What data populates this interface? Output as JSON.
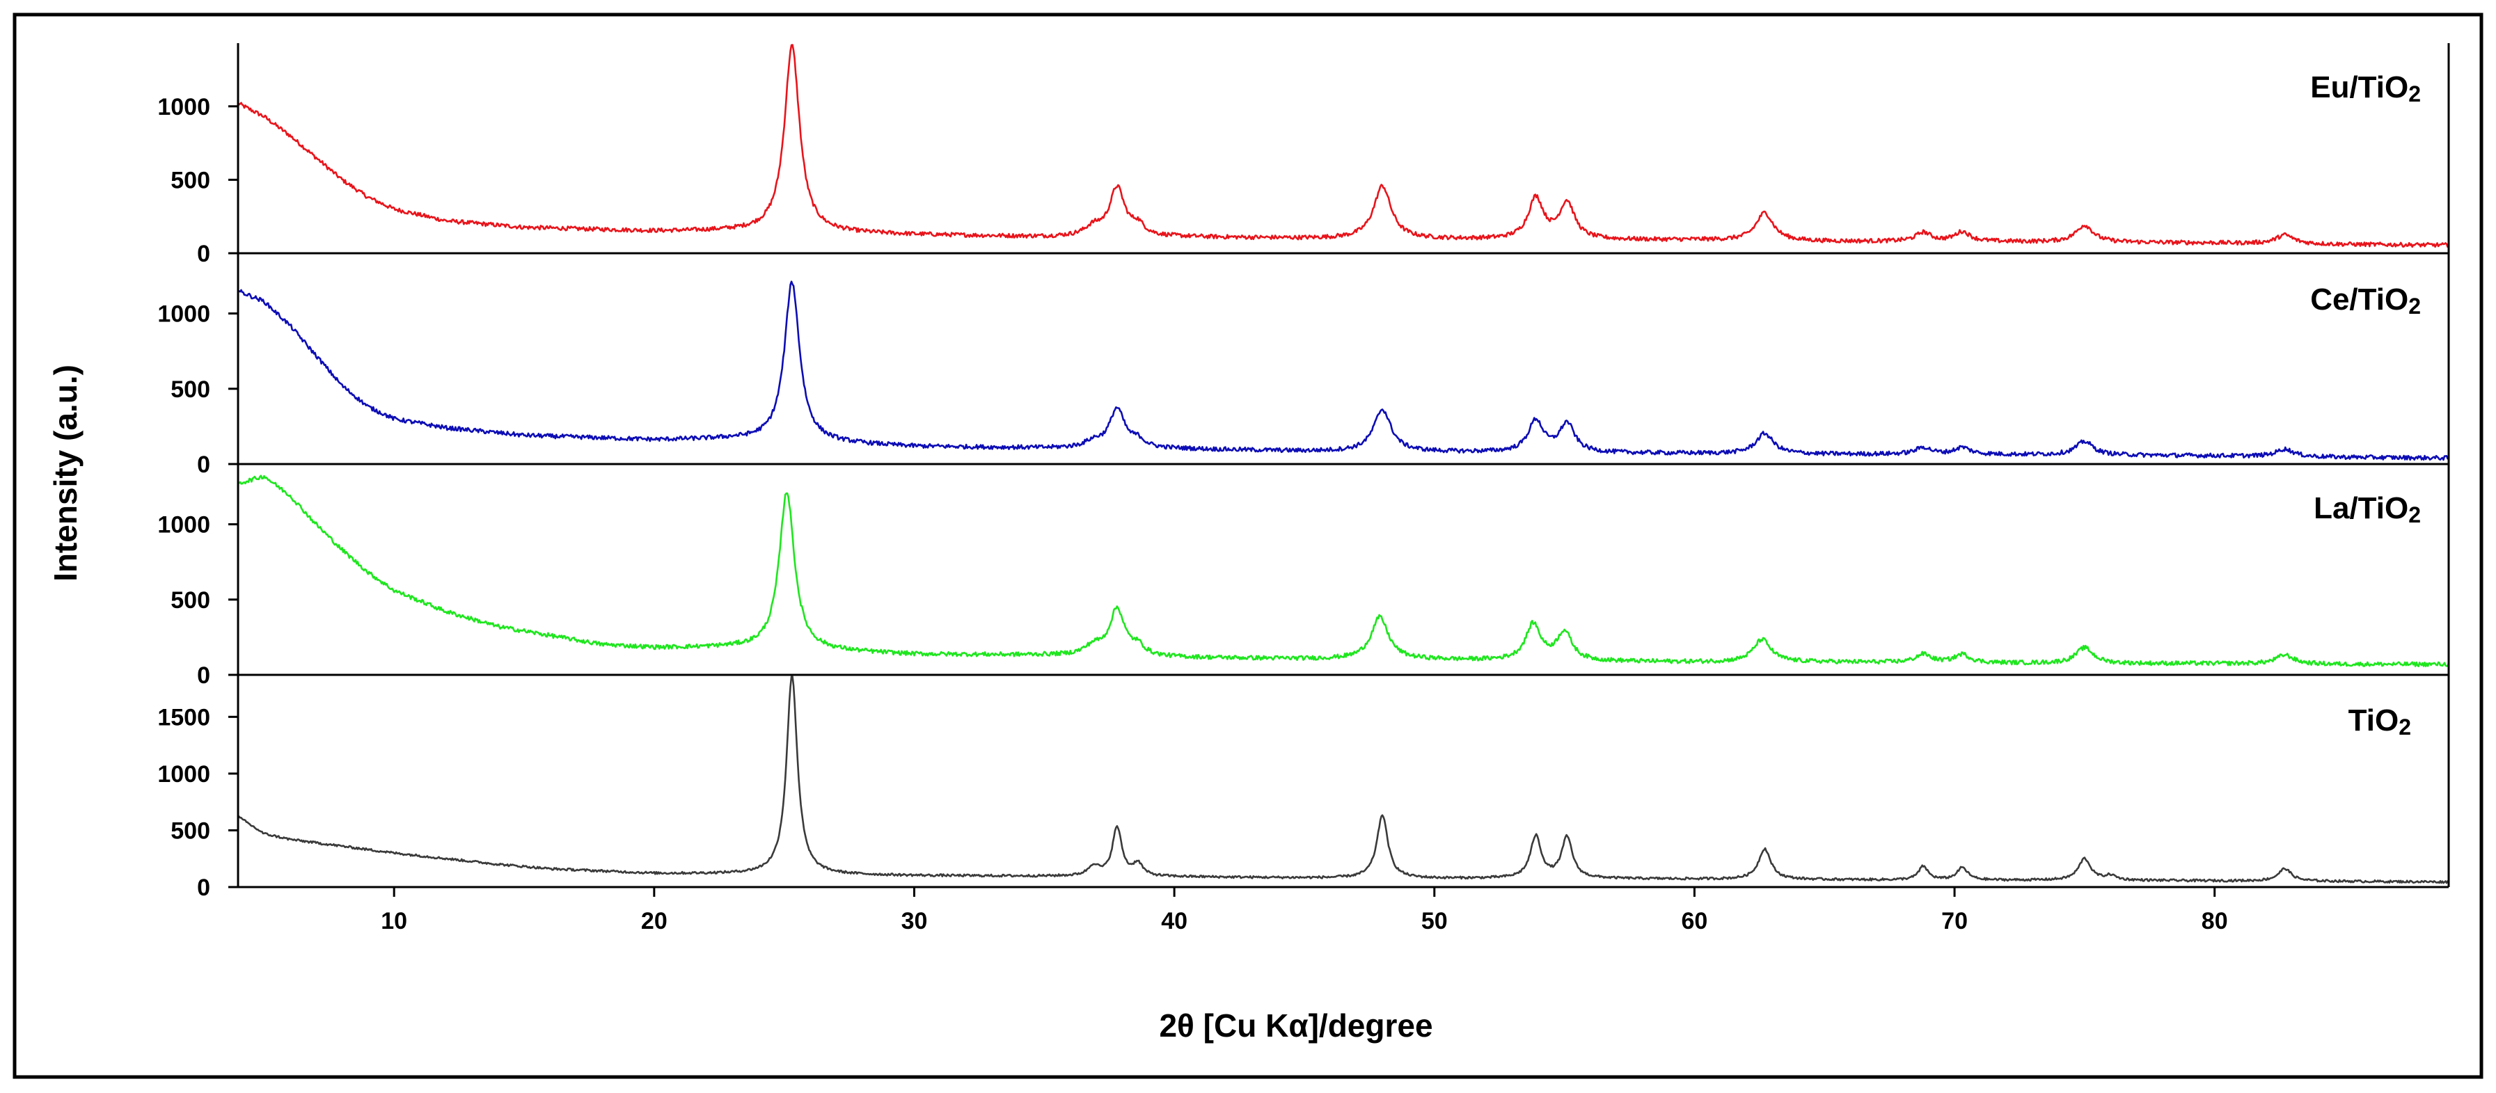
{
  "chart_data": {
    "type": "line",
    "title": "",
    "xlabel": "2θ [Cu Kα]/degree",
    "ylabel": "Intensity (a.u.)",
    "xlim": [
      4,
      89
    ],
    "x_ticks": [
      10,
      20,
      30,
      40,
      50,
      60,
      70,
      80
    ],
    "x_tick_labels": [
      "10",
      "20",
      "30",
      "40",
      "50",
      "60",
      "70",
      "80"
    ],
    "grid": false,
    "layout": "stacked panels sharing x axis",
    "series": [
      {
        "name": "Eu/TiO2",
        "label_main": "Eu/TiO",
        "label_sub": "2",
        "color": "#e8141b",
        "ylim": [
          0,
          1430
        ],
        "y_ticks": [
          0,
          500,
          1000
        ],
        "y_tick_labels": [
          "0",
          "500",
          "1000"
        ],
        "baseline": [
          [
            4,
            1020
          ],
          [
            5,
            930
          ],
          [
            6,
            800
          ],
          [
            7,
            650
          ],
          [
            8,
            500
          ],
          [
            9,
            380
          ],
          [
            10,
            300
          ],
          [
            12,
            220
          ],
          [
            15,
            175
          ],
          [
            20,
            150
          ],
          [
            23,
            150
          ],
          [
            30,
            125
          ],
          [
            35,
            110
          ],
          [
            40,
            110
          ],
          [
            45,
            100
          ],
          [
            50,
            95
          ],
          [
            55,
            90
          ],
          [
            60,
            90
          ],
          [
            65,
            80
          ],
          [
            70,
            80
          ],
          [
            75,
            75
          ],
          [
            80,
            70
          ],
          [
            85,
            60
          ],
          [
            89,
            55
          ]
        ],
        "peaks": [
          [
            25.3,
            1270,
            0.35
          ],
          [
            36.9,
            60,
            0.4
          ],
          [
            37.8,
            330,
            0.35
          ],
          [
            38.6,
            70,
            0.3
          ],
          [
            48.0,
            360,
            0.4
          ],
          [
            53.9,
            280,
            0.35
          ],
          [
            55.1,
            250,
            0.35
          ],
          [
            62.7,
            190,
            0.4
          ],
          [
            68.8,
            60,
            0.35
          ],
          [
            70.3,
            65,
            0.35
          ],
          [
            75.0,
            115,
            0.4
          ],
          [
            82.7,
            60,
            0.4
          ]
        ],
        "noise": 14
      },
      {
        "name": "Ce/TiO2",
        "label_main": "Ce/TiO",
        "label_sub": "2",
        "color": "#0d0db5",
        "ylim": [
          0,
          1400
        ],
        "y_ticks": [
          0,
          500,
          1000
        ],
        "y_tick_labels": [
          "0",
          "500",
          "1000"
        ],
        "baseline": [
          [
            4,
            1150
          ],
          [
            5,
            1080
          ],
          [
            6,
            920
          ],
          [
            7,
            720
          ],
          [
            8,
            520
          ],
          [
            9,
            380
          ],
          [
            10,
            300
          ],
          [
            12,
            240
          ],
          [
            15,
            190
          ],
          [
            20,
            160
          ],
          [
            23,
            165
          ],
          [
            30,
            115
          ],
          [
            35,
            105
          ],
          [
            40,
            100
          ],
          [
            45,
            85
          ],
          [
            50,
            80
          ],
          [
            55,
            75
          ],
          [
            60,
            70
          ],
          [
            65,
            65
          ],
          [
            70,
            65
          ],
          [
            75,
            60
          ],
          [
            80,
            55
          ],
          [
            85,
            45
          ],
          [
            89,
            40
          ]
        ],
        "peaks": [
          [
            25.3,
            1060,
            0.35
          ],
          [
            36.9,
            40,
            0.4
          ],
          [
            37.8,
            260,
            0.35
          ],
          [
            38.6,
            50,
            0.3
          ],
          [
            48.0,
            280,
            0.4
          ],
          [
            53.9,
            210,
            0.35
          ],
          [
            55.1,
            190,
            0.35
          ],
          [
            62.7,
            135,
            0.4
          ],
          [
            68.8,
            45,
            0.35
          ],
          [
            70.3,
            45,
            0.35
          ],
          [
            75.0,
            90,
            0.4
          ],
          [
            82.7,
            50,
            0.4
          ]
        ],
        "noise": 14
      },
      {
        "name": "La/TiO2",
        "label_main": "La/TiO",
        "label_sub": "2",
        "color": "#1ee61e",
        "ylim": [
          0,
          1400
        ],
        "y_ticks": [
          0,
          500,
          1000
        ],
        "y_tick_labels": [
          "0",
          "500",
          "1000"
        ],
        "baseline": [
          [
            4,
            1270
          ],
          [
            5,
            1320
          ],
          [
            6,
            1190
          ],
          [
            7,
            1000
          ],
          [
            8,
            830
          ],
          [
            9,
            680
          ],
          [
            10,
            560
          ],
          [
            12,
            420
          ],
          [
            14,
            320
          ],
          [
            16,
            260
          ],
          [
            18,
            200
          ],
          [
            20,
            180
          ],
          [
            23,
            180
          ],
          [
            30,
            135
          ],
          [
            35,
            130
          ],
          [
            40,
            115
          ],
          [
            45,
            105
          ],
          [
            50,
            100
          ],
          [
            55,
            90
          ],
          [
            60,
            85
          ],
          [
            65,
            85
          ],
          [
            70,
            80
          ],
          [
            75,
            75
          ],
          [
            80,
            75
          ],
          [
            85,
            70
          ],
          [
            89,
            70
          ]
        ],
        "peaks": [
          [
            25.1,
            1050,
            0.35
          ],
          [
            36.9,
            60,
            0.4
          ],
          [
            37.8,
            310,
            0.35
          ],
          [
            38.6,
            60,
            0.3
          ],
          [
            47.9,
            280,
            0.4
          ],
          [
            53.8,
            240,
            0.35
          ],
          [
            55.0,
            190,
            0.35
          ],
          [
            62.6,
            150,
            0.4
          ],
          [
            68.8,
            55,
            0.35
          ],
          [
            70.3,
            55,
            0.35
          ],
          [
            75.0,
            105,
            0.4
          ],
          [
            82.7,
            60,
            0.4
          ]
        ],
        "noise": 14
      },
      {
        "name": "TiO2",
        "label_main": "TiO",
        "label_sub": "2",
        "color": "#3a3a3a",
        "ylim": [
          0,
          1870
        ],
        "y_ticks": [
          0,
          500,
          1000,
          1500
        ],
        "y_tick_labels": [
          "0",
          "500",
          "1000",
          "1500"
        ],
        "baseline": [
          [
            4,
            620
          ],
          [
            5,
            470
          ],
          [
            6,
            420
          ],
          [
            8,
            360
          ],
          [
            10,
            300
          ],
          [
            12,
            250
          ],
          [
            14,
            200
          ],
          [
            16,
            160
          ],
          [
            20,
            120
          ],
          [
            23,
            115
          ],
          [
            30,
            100
          ],
          [
            35,
            95
          ],
          [
            40,
            90
          ],
          [
            45,
            80
          ],
          [
            50,
            75
          ],
          [
            55,
            75
          ],
          [
            60,
            70
          ],
          [
            65,
            65
          ],
          [
            70,
            60
          ],
          [
            75,
            60
          ],
          [
            80,
            55
          ],
          [
            85,
            50
          ],
          [
            89,
            45
          ]
        ],
        "peaks": [
          [
            25.3,
            1760,
            0.25
          ],
          [
            36.9,
            90,
            0.25
          ],
          [
            37.8,
            430,
            0.22
          ],
          [
            38.6,
            110,
            0.22
          ],
          [
            48.0,
            560,
            0.25
          ],
          [
            53.9,
            370,
            0.25
          ],
          [
            55.1,
            360,
            0.25
          ],
          [
            62.7,
            270,
            0.28
          ],
          [
            68.8,
            120,
            0.22
          ],
          [
            70.3,
            110,
            0.25
          ],
          [
            75.0,
            190,
            0.28
          ],
          [
            76.0,
            40,
            0.25
          ],
          [
            82.7,
            110,
            0.3
          ]
        ],
        "noise": 10
      }
    ]
  }
}
